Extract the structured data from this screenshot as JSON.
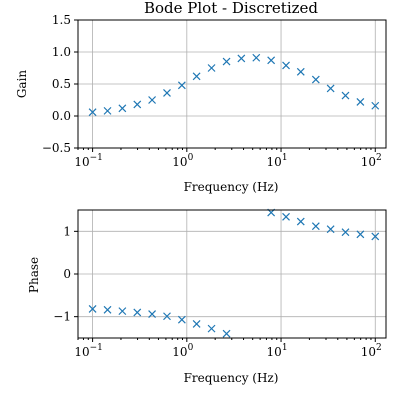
{
  "chart_data": [
    {
      "type": "scatter",
      "title": "Bode Plot - Discretized",
      "xlabel": "Frequency (Hz)",
      "ylabel": "Gain",
      "xscale": "log",
      "xlim": [
        0.07,
        130
      ],
      "ylim": [
        -0.5,
        1.5
      ],
      "yticks": [
        -0.5,
        0.0,
        0.5,
        1.0,
        1.5
      ],
      "ytick_labels": [
        "−0.5",
        "0.0",
        "0.5",
        "1.0",
        "1.5"
      ],
      "xtick_labels": [
        {
          "base": "10",
          "exp": "−1"
        },
        {
          "base": "10",
          "exp": "0"
        },
        {
          "base": "10",
          "exp": "1"
        },
        {
          "base": "10",
          "exp": "2"
        }
      ],
      "grid": true,
      "marker": "x",
      "color": "#1f77b4",
      "x": [
        0.1,
        0.144,
        0.207,
        0.298,
        0.428,
        0.616,
        0.886,
        1.27,
        1.83,
        2.64,
        3.79,
        5.46,
        7.85,
        11.3,
        16.2,
        23.4,
        33.6,
        48.3,
        69.5,
        100
      ],
      "y": [
        0.06,
        0.08,
        0.12,
        0.18,
        0.25,
        0.36,
        0.48,
        0.62,
        0.75,
        0.85,
        0.9,
        0.91,
        0.87,
        0.79,
        0.69,
        0.57,
        0.43,
        0.32,
        0.22,
        0.16
      ]
    },
    {
      "type": "scatter",
      "title": "",
      "xlabel": "Frequency (Hz)",
      "ylabel": "Phase",
      "xscale": "log",
      "xlim": [
        0.07,
        130
      ],
      "ylim": [
        -1.5,
        1.5
      ],
      "yticks": [
        -1,
        0,
        1
      ],
      "ytick_labels": [
        "−1",
        "0",
        "1"
      ],
      "xtick_labels": [
        {
          "base": "10",
          "exp": "−1"
        },
        {
          "base": "10",
          "exp": "0"
        },
        {
          "base": "10",
          "exp": "1"
        },
        {
          "base": "10",
          "exp": "2"
        }
      ],
      "grid": true,
      "marker": "x",
      "color": "#1f77b4",
      "x": [
        0.1,
        0.144,
        0.207,
        0.298,
        0.428,
        0.616,
        0.886,
        1.27,
        1.83,
        2.64,
        3.79,
        5.46,
        7.85,
        11.3,
        16.2,
        23.4,
        33.6,
        48.3,
        69.5,
        100
      ],
      "y": [
        -0.82,
        -0.84,
        -0.87,
        -0.9,
        -0.94,
        -0.99,
        -1.07,
        -1.17,
        -1.28,
        -1.4,
        -1.52,
        1.55,
        1.44,
        1.34,
        1.23,
        1.12,
        1.05,
        0.98,
        0.93,
        0.88
      ]
    }
  ]
}
